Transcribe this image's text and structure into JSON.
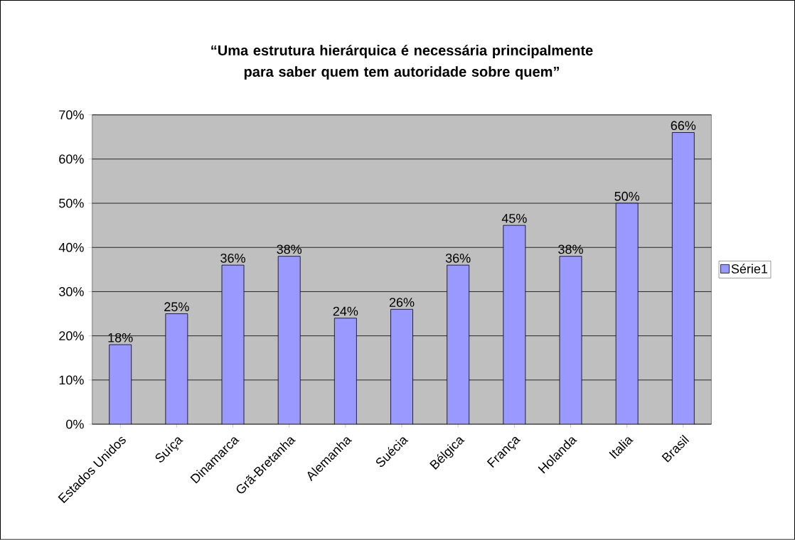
{
  "chart_data": {
    "type": "bar",
    "title": "“Uma estrutura hierárquica é necessária principalmente para saber quem tem autoridade sobre quem”",
    "categories": [
      "Estados Unidos",
      "Suíça",
      "Dinamarca",
      "Grã-Bretanha",
      "Alemanha",
      "Suécia",
      "Bélgica",
      "França",
      "Holanda",
      "Italia",
      "Brasil"
    ],
    "series": [
      {
        "name": "Série1",
        "color": "#9999ff",
        "values": [
          18,
          25,
          36,
          38,
          24,
          26,
          36,
          45,
          38,
          50,
          66
        ],
        "value_labels": [
          "18%",
          "25%",
          "36%",
          "38%",
          "24%",
          "26%",
          "36%",
          "45%",
          "38%",
          "50%",
          "66%"
        ]
      }
    ],
    "ylim": [
      0,
      70
    ],
    "yticks": [
      {
        "value": 0,
        "label": "0%"
      },
      {
        "value": 10,
        "label": "10%"
      },
      {
        "value": 20,
        "label": "20%"
      },
      {
        "value": 30,
        "label": "30%"
      },
      {
        "value": 40,
        "label": "40%"
      },
      {
        "value": 50,
        "label": "50%"
      },
      {
        "value": 60,
        "label": "60%"
      },
      {
        "value": 70,
        "label": "70%"
      }
    ],
    "grid": "y",
    "legend": "right"
  }
}
